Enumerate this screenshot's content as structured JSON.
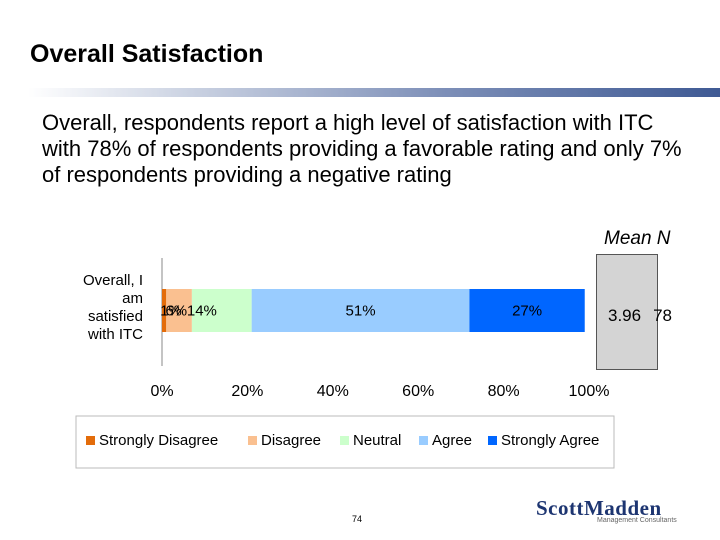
{
  "slide": {
    "title": "Overall Satisfaction",
    "body": "Overall, respondents report a high level of satisfaction with ITC with 78% of respondents providing a favorable rating and only 7% of respondents providing a negative rating",
    "mean_n_header": "Mean N",
    "mean_value": "3.96",
    "n_value": "78",
    "page_number": "74",
    "logo_text": "ScottMadden",
    "logo_tagline": "Management Consultants"
  },
  "chart_data": {
    "type": "bar",
    "orientation": "horizontal",
    "stacked": true,
    "categories": [
      "Overall, I am satisfied with ITC"
    ],
    "series": [
      {
        "name": "Strongly Disagree",
        "values": [
          1
        ],
        "label": "1%",
        "color": "#e36c0a"
      },
      {
        "name": "Disagree",
        "values": [
          6
        ],
        "label": "6%",
        "color": "#fac090"
      },
      {
        "name": "Neutral",
        "values": [
          14
        ],
        "label": "14%",
        "color": "#ccffcc"
      },
      {
        "name": "Agree",
        "values": [
          51
        ],
        "label": "51%",
        "color": "#99ccff"
      },
      {
        "name": "Strongly Agree",
        "values": [
          27
        ],
        "label": "27%",
        "color": "#0066ff"
      }
    ],
    "x_ticks": [
      "0%",
      "20%",
      "40%",
      "60%",
      "80%",
      "100%"
    ],
    "xlim": [
      0,
      100
    ],
    "legend_position": "bottom"
  }
}
